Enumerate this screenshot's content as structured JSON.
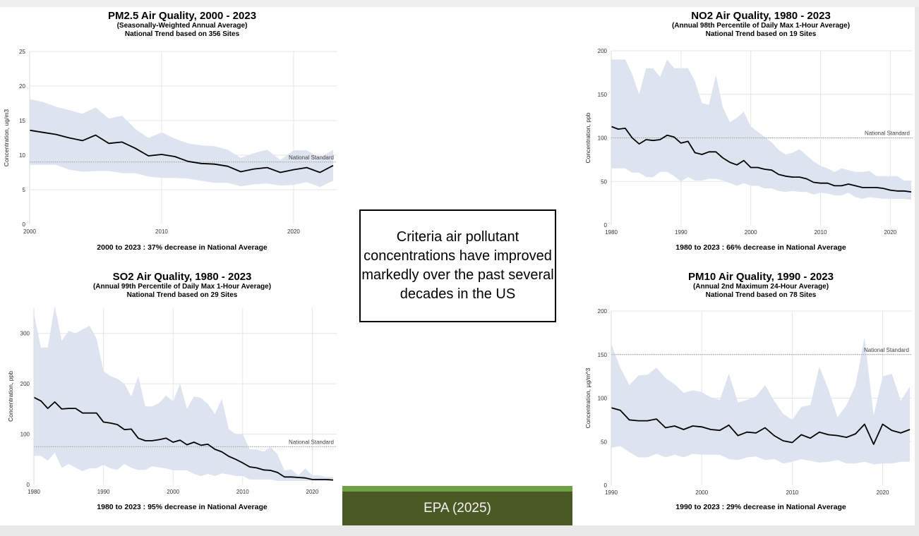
{
  "callout": "Criteria air pollutant concentrations have improved markedly over the past several decades in the US",
  "credit": "EPA (2025)",
  "colors": {
    "band": "#dde4ef",
    "line": "#000000",
    "standard": "#9a9a9a",
    "grid": "#e6e6e6",
    "credit_bg": "#4b5a24",
    "credit_bar": "#6ea044"
  },
  "chart_data": [
    {
      "type": "area",
      "title": "PM2.5 Air Quality, 2000 - 2023",
      "subtitle1": "(Seasonally-Weighted Annual Average)",
      "subtitle2": "National Trend based on 356 Sites",
      "footnote": "2000 to 2023 :  37% decrease in National Average",
      "ylabel": "Concentration, ug/m3",
      "xlim": [
        2000,
        2023
      ],
      "ylim": [
        0,
        25
      ],
      "xticks": [
        2000,
        2010,
        2020
      ],
      "yticks": [
        0,
        5,
        10,
        15,
        20,
        25
      ],
      "standard": 9,
      "standard_label": "National Standard",
      "x_start": 2000,
      "mean": [
        13.6,
        13.3,
        13.0,
        12.5,
        12.1,
        12.9,
        11.7,
        11.9,
        11.0,
        9.9,
        10.1,
        9.8,
        9.1,
        8.8,
        8.7,
        8.4,
        7.6,
        8.0,
        8.2,
        7.5,
        7.9,
        8.2,
        7.5,
        8.5
      ],
      "upper": [
        18.1,
        17.7,
        17.0,
        16.5,
        16.0,
        16.9,
        15.3,
        15.7,
        13.8,
        12.5,
        13.3,
        12.4,
        11.7,
        11.4,
        11.3,
        10.8,
        9.6,
        10.3,
        10.8,
        9.3,
        10.7,
        10.7,
        9.6,
        10.8
      ],
      "lower": [
        8.6,
        8.6,
        8.6,
        7.9,
        7.6,
        7.7,
        7.7,
        7.4,
        7.4,
        6.9,
        6.7,
        6.7,
        6.6,
        6.3,
        6.0,
        6.0,
        5.5,
        5.8,
        5.9,
        5.6,
        5.7,
        6.1,
        5.4,
        6.3
      ]
    },
    {
      "type": "area",
      "title": "NO2 Air Quality, 1980 - 2023",
      "subtitle1": "(Annual 98th Percentile of Daily Max 1-Hour Average)",
      "subtitle2": "National Trend based on 19 Sites",
      "footnote": "1980 to 2023 :  66% decrease in National Average",
      "ylabel": "Concentration, ppb",
      "xlim": [
        1980,
        2023
      ],
      "ylim": [
        0,
        200
      ],
      "xticks": [
        1980,
        1990,
        2000,
        2010,
        2020
      ],
      "yticks": [
        0,
        50,
        100,
        150,
        200
      ],
      "standard": 100,
      "standard_label": "National Standard",
      "x_start": 1980,
      "mean": [
        113,
        110,
        111,
        100,
        93,
        98,
        97,
        98,
        103,
        101,
        94,
        96,
        83,
        81,
        84,
        84,
        77,
        72,
        69,
        74,
        66,
        66,
        64,
        63,
        58,
        56,
        55,
        55,
        53,
        49,
        48,
        48,
        45,
        45,
        47,
        45,
        43,
        43,
        43,
        42,
        40,
        39,
        39,
        38
      ],
      "upper": [
        190,
        190,
        190,
        173,
        150,
        180,
        180,
        170,
        190,
        180,
        180,
        180,
        165,
        140,
        138,
        172,
        135,
        118,
        123,
        130,
        113,
        107,
        101,
        95,
        86,
        81,
        83,
        87,
        80,
        73,
        68,
        65,
        61,
        65,
        63,
        61,
        61,
        62,
        56,
        56,
        56,
        56,
        51,
        51
      ],
      "lower": [
        65,
        65,
        65,
        60,
        60,
        55,
        55,
        61,
        61,
        56,
        50,
        55,
        51,
        51,
        53,
        53,
        51,
        48,
        45,
        48,
        45,
        45,
        42,
        42,
        39,
        38,
        39,
        38,
        38,
        35,
        37,
        36,
        34,
        34,
        37,
        32,
        30,
        32,
        31,
        30,
        30,
        30,
        30,
        29
      ]
    },
    {
      "type": "area",
      "title": "SO2 Air Quality, 1980 - 2023",
      "subtitle1": "(Annual 99th Percentile of Daily Max 1-Hour Average)",
      "subtitle2": "National Trend based on 29 Sites",
      "footnote": "1980 to 2023 :  95% decrease in National Average",
      "ylabel": "Concentration, ppb",
      "xlim": [
        1980,
        2023
      ],
      "ylim": [
        0,
        350
      ],
      "xticks": [
        1980,
        1990,
        2000,
        2010,
        2020
      ],
      "yticks": [
        0,
        100,
        200,
        300
      ],
      "standard": 75,
      "standard_label": "National Standard",
      "x_start": 1980,
      "mean": [
        173,
        166,
        151,
        164,
        150,
        151,
        151,
        142,
        142,
        142,
        124,
        122,
        119,
        109,
        110,
        92,
        87,
        87,
        89,
        92,
        84,
        88,
        79,
        84,
        78,
        80,
        70,
        65,
        56,
        50,
        43,
        35,
        33,
        29,
        28,
        24,
        15,
        15,
        14,
        13,
        10,
        10,
        10,
        9
      ],
      "upper": [
        340,
        272,
        272,
        355,
        285,
        305,
        300,
        308,
        315,
        290,
        225,
        215,
        210,
        200,
        175,
        215,
        155,
        155,
        162,
        177,
        165,
        200,
        150,
        175,
        172,
        160,
        140,
        170,
        110,
        100,
        100,
        70,
        70,
        65,
        75,
        60,
        28,
        30,
        18,
        32,
        18,
        18,
        15,
        15
      ],
      "lower": [
        57,
        57,
        47,
        63,
        33,
        41,
        33,
        27,
        32,
        32,
        39,
        32,
        29,
        41,
        33,
        29,
        29,
        36,
        34,
        32,
        28,
        28,
        28,
        21,
        17,
        21,
        17,
        22,
        20,
        17,
        17,
        10,
        10,
        10,
        10,
        7,
        7,
        7,
        7,
        7,
        7,
        7,
        7,
        7
      ]
    },
    {
      "type": "area",
      "title": "PM10 Air Quality, 1990 - 2023",
      "subtitle1": "(Annual 2nd Maximum 24-Hour Average)",
      "subtitle2": "National Trend based on 78 Sites",
      "footnote": "1990 to 2023 :  29% decrease in National Average",
      "ylabel": "Concentration, µg/m^3",
      "xlim": [
        1990,
        2023
      ],
      "ylim": [
        0,
        200
      ],
      "xticks": [
        1990,
        2000,
        2010,
        2020
      ],
      "yticks": [
        0,
        50,
        100,
        150,
        200
      ],
      "standard": 150,
      "standard_label": "National Standard",
      "x_start": 1990,
      "mean": [
        89,
        86,
        75,
        74,
        74,
        76,
        66,
        68,
        64,
        68,
        67,
        64,
        63,
        69,
        57,
        61,
        60,
        66,
        57,
        51,
        49,
        58,
        54,
        61,
        58,
        57,
        55,
        59,
        70,
        47,
        70,
        63,
        60,
        64
      ],
      "upper": [
        162,
        135,
        115,
        126,
        127,
        135,
        123,
        116,
        106,
        109,
        107,
        101,
        98,
        128,
        95,
        98,
        102,
        115,
        97,
        82,
        75,
        90,
        92,
        136,
        110,
        78,
        92,
        115,
        170,
        80,
        125,
        128,
        97,
        113
      ],
      "lower": [
        43,
        45,
        38,
        32,
        32,
        36,
        32,
        35,
        32,
        36,
        35,
        35,
        35,
        30,
        29,
        32,
        33,
        29,
        30,
        25,
        27,
        30,
        28,
        26,
        27,
        29,
        25,
        25,
        27,
        24,
        25,
        25,
        27,
        27
      ]
    }
  ]
}
